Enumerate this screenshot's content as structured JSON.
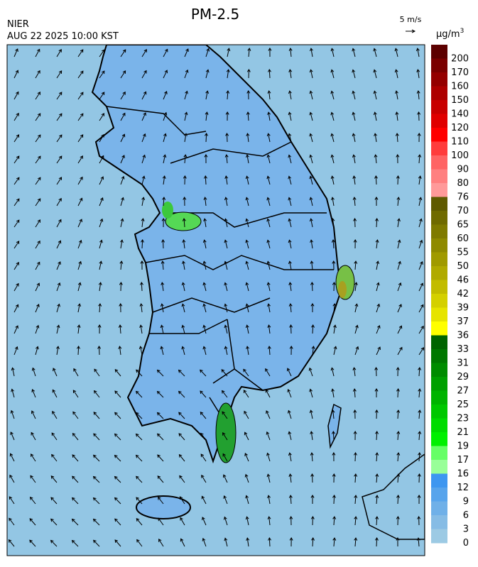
{
  "header": {
    "title": "PM-2.5",
    "agency": "NIER",
    "datetime": "AUG 22 2025 10:00 KST",
    "wind_scale": "5 m/s"
  },
  "colorbar": {
    "unit": "μg/m",
    "unit_sup": "3",
    "labels": [
      200,
      170,
      160,
      150,
      140,
      120,
      110,
      100,
      90,
      80,
      76,
      70,
      65,
      60,
      55,
      50,
      46,
      42,
      39,
      37,
      36,
      33,
      31,
      29,
      27,
      25,
      23,
      21,
      19,
      17,
      16,
      12,
      9,
      6,
      3,
      0
    ],
    "colors": [
      "#5c0000",
      "#7a0000",
      "#940000",
      "#ad0000",
      "#c80000",
      "#e00000",
      "#ff0000",
      "#ff3c3c",
      "#ff6464",
      "#ff8080",
      "#ff9a9a",
      "#5f5a00",
      "#6f6a00",
      "#7f7a00",
      "#8f8a00",
      "#a09a00",
      "#b0aa00",
      "#c2bc00",
      "#d4d000",
      "#e6e400",
      "#ffff00",
      "#006400",
      "#007800",
      "#008c00",
      "#00a000",
      "#00b400",
      "#00c800",
      "#00dc00",
      "#00f000",
      "#66ff66",
      "#99ff99",
      "#3d96f0",
      "#57a4ec",
      "#6fb0e8",
      "#86bce5",
      "#9ccae4"
    ]
  }
}
